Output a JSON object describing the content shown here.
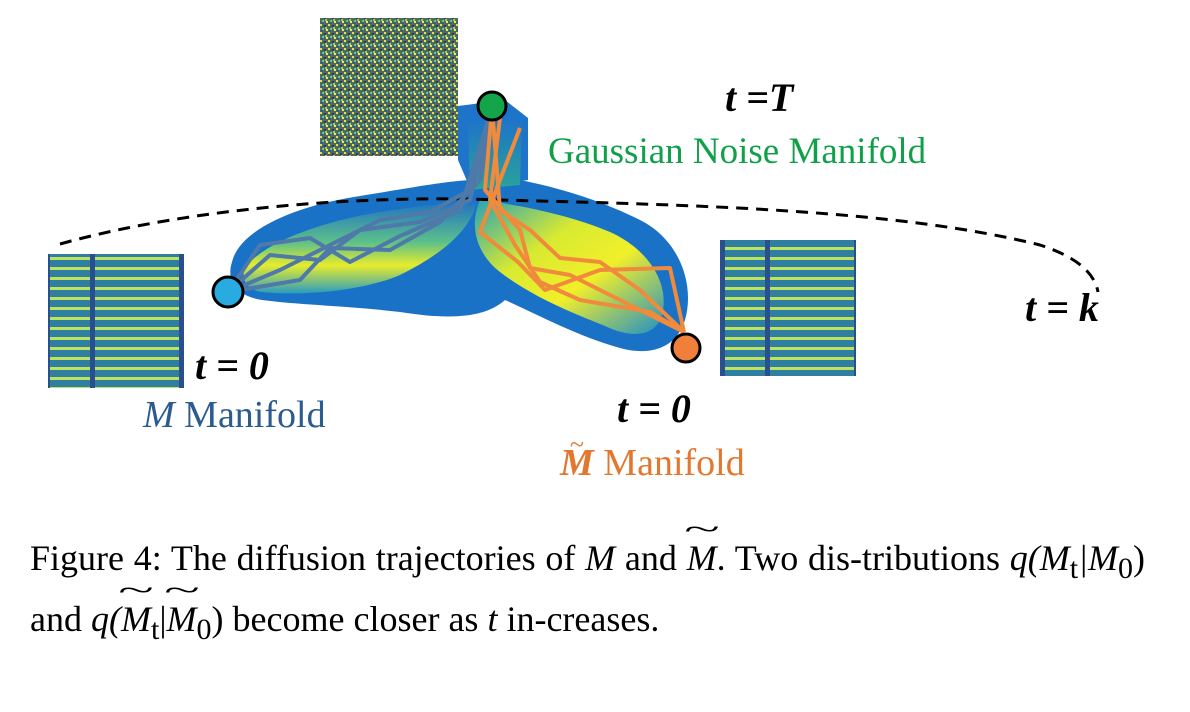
{
  "labels": {
    "t_top": "t =T",
    "gaussian": "Gaussian Noise Manifold",
    "t_k": "t = k",
    "t_left": "t = 0",
    "m_manifold_sym": "M",
    "m_manifold_text": " Manifold",
    "t_right": "t = 0",
    "mt_manifold_sym": "M",
    "mt_manifold_text": " Manifold"
  },
  "caption": {
    "lead": "Figure 4: The diffusion trajectories of ",
    "sym_M": "M",
    "and": " and ",
    "sym_Mt": "M",
    "after": ". Two dis-tributions ",
    "q1": "q(M",
    "q1_sub": "t",
    "q1_mid": "|M",
    "q1_sub0": "0",
    "q1_end": ")",
    "and2": " and ",
    "q2": "q(",
    "q2_M1": "M",
    "q2_sub": "t",
    "q2_bar": "|",
    "q2_M2": "M",
    "q2_sub0": "0",
    "q2_end": ")",
    "tail": " become closer as ",
    "t": "t",
    "tail2": " in-creases."
  },
  "colors": {
    "blue_traj": "#4f79a8",
    "orange_traj": "#f08a3c",
    "blue_node": "#29abe2",
    "green_node": "#14a54b",
    "orange_node": "#f07f3c",
    "gaussian_text": "#11a04a",
    "m_text": "#2c5b8e",
    "mt_text": "#e2782f"
  }
}
